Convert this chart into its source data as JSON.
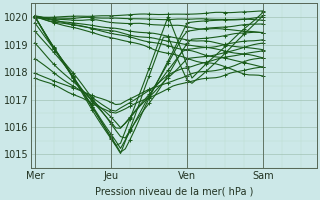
{
  "xlabel": "Pression niveau de la mer( hPa )",
  "ylim": [
    1014.5,
    1020.5
  ],
  "yticks": [
    1015,
    1016,
    1017,
    1018,
    1019,
    1020
  ],
  "xtick_labels": [
    "Mer",
    "Jeu",
    "Ven",
    "Sam"
  ],
  "xtick_positions": [
    0,
    96,
    192,
    288
  ],
  "xlim": [
    -5,
    355
  ],
  "bg_color": "#cce8e8",
  "line_color": "#1a5c1a",
  "linewidth": 0.8
}
